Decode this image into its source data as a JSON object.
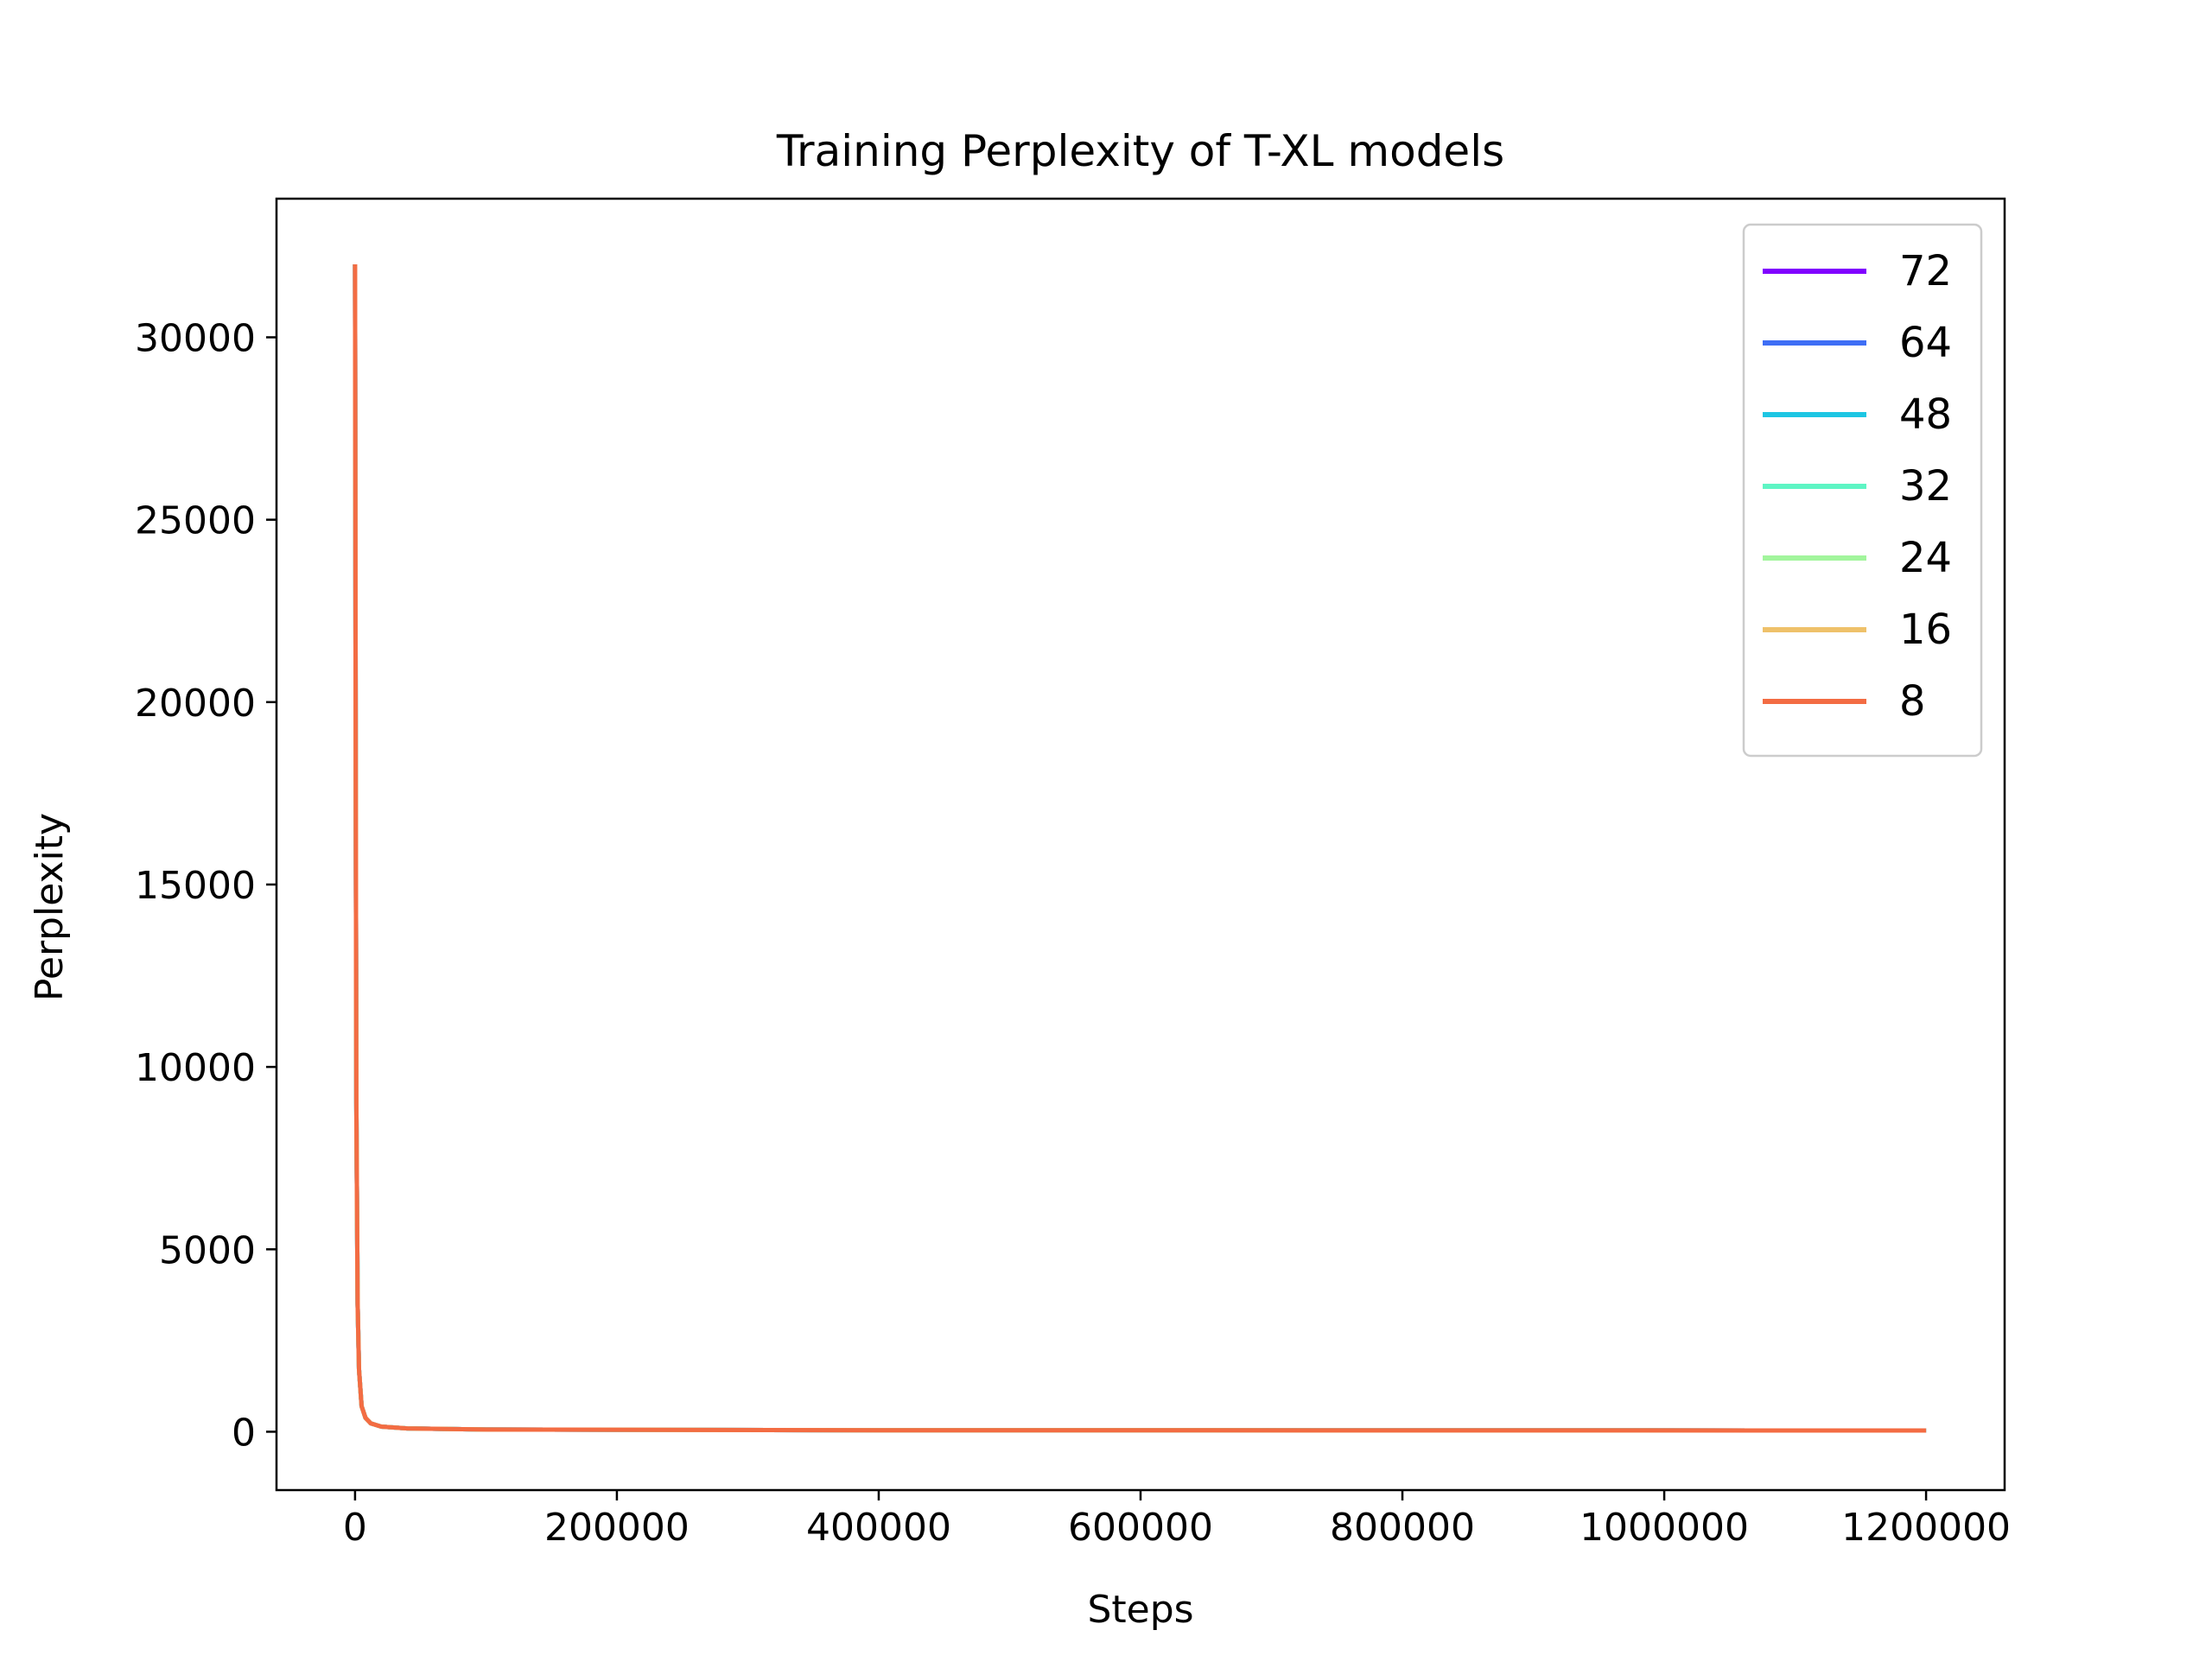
{
  "chart_data": {
    "type": "line",
    "title": "Training Perplexity of T-XL models",
    "xlabel": "Steps",
    "ylabel": "Perplexity",
    "xlim": [
      -60000,
      1260000
    ],
    "ylim": [
      -1600,
      33800
    ],
    "xticks": [
      0,
      200000,
      400000,
      600000,
      800000,
      1000000,
      1200000
    ],
    "xtick_labels": [
      "0",
      "200000",
      "400000",
      "600000",
      "800000",
      "1000000",
      "1200000"
    ],
    "yticks": [
      0,
      5000,
      10000,
      15000,
      20000,
      25000,
      30000
    ],
    "ytick_labels": [
      "0",
      "5000",
      "10000",
      "15000",
      "20000",
      "25000",
      "30000"
    ],
    "grid": false,
    "legend_position": "upper right",
    "series": [
      {
        "name": "72",
        "color": "#8000ff",
        "x": [
          0,
          500,
          1000,
          2000,
          3000,
          5000,
          8000,
          12000,
          20000,
          40000,
          100000,
          400000,
          1200000
        ],
        "y": [
          32000,
          18000,
          9000,
          3500,
          1700,
          700,
          380,
          230,
          140,
          90,
          60,
          42,
          35
        ]
      },
      {
        "name": "64",
        "color": "#3e6ef5",
        "x": [
          0,
          500,
          1000,
          2000,
          3000,
          5000,
          8000,
          12000,
          20000,
          40000,
          100000,
          400000,
          1200000
        ],
        "y": [
          32000,
          18000,
          9000,
          3500,
          1700,
          700,
          380,
          230,
          140,
          90,
          60,
          42,
          35
        ]
      },
      {
        "name": "48",
        "color": "#1dc6e3",
        "x": [
          0,
          500,
          1000,
          2000,
          3000,
          5000,
          8000,
          12000,
          20000,
          40000,
          100000,
          400000,
          1200000
        ],
        "y": [
          32000,
          18000,
          9000,
          3500,
          1700,
          700,
          380,
          230,
          140,
          90,
          60,
          42,
          35
        ]
      },
      {
        "name": "32",
        "color": "#5ef5c4",
        "x": [
          0,
          500,
          1000,
          2000,
          3000,
          5000,
          8000,
          12000,
          20000,
          40000,
          100000,
          400000,
          1200000
        ],
        "y": [
          32000,
          18000,
          9000,
          3500,
          1700,
          700,
          380,
          230,
          140,
          90,
          60,
          42,
          35
        ]
      },
      {
        "name": "24",
        "color": "#a2f59c",
        "x": [
          0,
          500,
          1000,
          2000,
          3000,
          5000,
          8000,
          12000,
          20000,
          40000,
          100000,
          400000,
          1200000
        ],
        "y": [
          32000,
          18000,
          9000,
          3500,
          1700,
          700,
          380,
          230,
          140,
          90,
          60,
          42,
          35
        ]
      },
      {
        "name": "16",
        "color": "#efc16a",
        "x": [
          0,
          500,
          1000,
          2000,
          3000,
          5000,
          8000,
          12000,
          20000,
          40000,
          100000,
          400000,
          1200000
        ],
        "y": [
          32000,
          18000,
          9000,
          3500,
          1700,
          700,
          380,
          230,
          140,
          90,
          60,
          42,
          35
        ]
      },
      {
        "name": "8",
        "color": "#f36c43",
        "x": [
          0,
          500,
          1000,
          2000,
          3000,
          5000,
          8000,
          12000,
          20000,
          40000,
          100000,
          400000,
          1200000
        ],
        "y": [
          32000,
          18000,
          9000,
          3500,
          1700,
          700,
          380,
          230,
          140,
          90,
          60,
          42,
          35
        ]
      }
    ]
  }
}
